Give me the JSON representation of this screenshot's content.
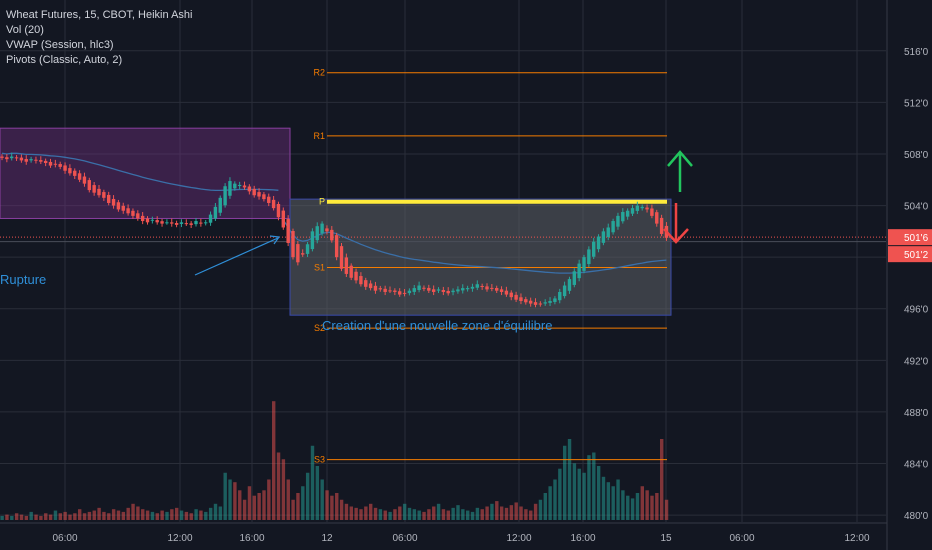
{
  "legend": {
    "title": "Wheat Futures, 15, CBOT, Heikin Ashi",
    "indicators": [
      "Vol (20)",
      "VWAP (Session, hlc3)",
      "Pivots (Classic, Auto, 2)"
    ]
  },
  "colors": {
    "background": "#131722",
    "grid": "#2a2e39",
    "up": "#26a69a",
    "down": "#ef5350",
    "vwap": "#3a6fa8",
    "pivot_p": "#ffeb3b",
    "pivot_levels": "#f57c00",
    "consolidation_zone": "#5d6066",
    "prior_zone": "#6b2f7a",
    "annotation": "#2f8fd8",
    "arrow_up": "#22c55e",
    "arrow_down": "#ef4444",
    "price_label": "#ef5350"
  },
  "annotations": {
    "rupture": "Rupture",
    "zone": "Creation d'une nouvelle zone d'équilibre"
  },
  "chart_data": {
    "type": "candlestick",
    "x_ticks": [
      "06:00",
      "12:00",
      "16:00",
      "12",
      "06:00",
      "12:00",
      "16:00",
      "15",
      "06:00",
      "12:00"
    ],
    "y_ticks": [
      "516'0",
      "512'0",
      "508'0",
      "504'0",
      "500'0",
      "496'0",
      "492'0",
      "488'0",
      "484'0",
      "480'0"
    ],
    "ylim": [
      479,
      518
    ],
    "price_labels": [
      "501'6",
      "501'2"
    ],
    "pivots": [
      {
        "label": "R2",
        "value": 514.3
      },
      {
        "label": "R1",
        "value": 509.4
      },
      {
        "label": "P",
        "value": 504.3
      },
      {
        "label": "S1",
        "value": 499.2
      },
      {
        "label": "S2",
        "value": 494.5
      },
      {
        "label": "S3",
        "value": 484.3
      }
    ],
    "candles_close": [
      507.7,
      507.6,
      507.8,
      507.7,
      507.5,
      507.4,
      507.6,
      507.5,
      507.4,
      507.3,
      507.1,
      507.2,
      507.0,
      506.7,
      506.5,
      506.3,
      506.0,
      505.7,
      505.2,
      505.0,
      504.8,
      504.6,
      504.2,
      504.0,
      503.7,
      503.6,
      503.4,
      503.2,
      503.0,
      502.8,
      502.7,
      502.9,
      502.7,
      502.6,
      502.7,
      502.6,
      502.5,
      502.7,
      502.6,
      502.5,
      502.8,
      502.6,
      502.7,
      503.3,
      503.9,
      504.6,
      505.5,
      505.9,
      505.7,
      505.6,
      505.4,
      505.1,
      504.8,
      504.7,
      504.5,
      504.2,
      503.8,
      503.1,
      502.3,
      501.1,
      500.0,
      499.6,
      500.2,
      501.0,
      502.0,
      502.4,
      502.6,
      502.0,
      501.3,
      500.0,
      499.1,
      498.7,
      498.4,
      498.2,
      497.9,
      497.7,
      497.6,
      497.4,
      497.5,
      497.3,
      497.4,
      497.3,
      497.1,
      497.2,
      497.4,
      497.6,
      497.8,
      497.6,
      497.4,
      497.3,
      497.5,
      497.3,
      497.2,
      497.4,
      497.5,
      497.6,
      497.6,
      497.7,
      497.9,
      497.7,
      497.5,
      497.6,
      497.4,
      497.3,
      497.1,
      496.9,
      496.7,
      496.6,
      496.5,
      496.4,
      496.3,
      496.4,
      496.5,
      496.6,
      496.8,
      497.3,
      497.8,
      498.3,
      498.9,
      499.5,
      500.0,
      500.6,
      501.2,
      501.6,
      502.0,
      502.3,
      502.8,
      503.2,
      503.5,
      503.6,
      503.8,
      504.0,
      503.9,
      503.7,
      503.2,
      502.6,
      501.8,
      501.5
    ],
    "volume_ylim": [
      0,
      100
    ],
    "volume": [
      3,
      4,
      3,
      5,
      4,
      3,
      6,
      4,
      3,
      5,
      4,
      7,
      5,
      6,
      4,
      5,
      8,
      5,
      6,
      7,
      9,
      6,
      5,
      8,
      7,
      6,
      9,
      12,
      10,
      8,
      7,
      6,
      5,
      7,
      6,
      8,
      9,
      7,
      6,
      5,
      8,
      7,
      6,
      9,
      12,
      10,
      35,
      30,
      28,
      22,
      15,
      25,
      18,
      20,
      22,
      30,
      88,
      50,
      45,
      30,
      15,
      20,
      25,
      35,
      55,
      40,
      30,
      22,
      18,
      20,
      15,
      12,
      10,
      9,
      8,
      10,
      12,
      9,
      8,
      7,
      6,
      8,
      10,
      12,
      9,
      8,
      7,
      6,
      8,
      10,
      12,
      8,
      7,
      9,
      11,
      8,
      7,
      6,
      9,
      8,
      10,
      12,
      14,
      10,
      9,
      11,
      13,
      10,
      8,
      7,
      12,
      15,
      20,
      25,
      30,
      38,
      55,
      60,
      42,
      38,
      35,
      48,
      50,
      40,
      32,
      28,
      25,
      30,
      22,
      18,
      16,
      20,
      25,
      22,
      18,
      20,
      60,
      15
    ]
  }
}
